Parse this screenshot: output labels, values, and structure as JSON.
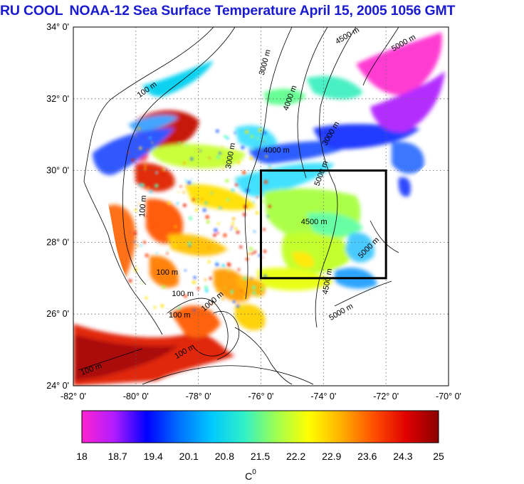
{
  "title": {
    "org": "RU COOL",
    "text": "NOAA-12 Sea Surface Temperature April 15, 2005 1056 GMT"
  },
  "axes": {
    "lat_labels": [
      "34° 0'",
      "32° 0'",
      "30° 0'",
      "28° 0'",
      "26° 0'",
      "24° 0'"
    ],
    "lon_labels": [
      "-82° 0'",
      "-80° 0'",
      "-78° 0'",
      "-76° 0'",
      "-74° 0'",
      "-72° 0'",
      "-70° 0'"
    ],
    "lat_range": [
      24,
      34
    ],
    "lon_range": [
      -82,
      -70
    ],
    "grid": true
  },
  "study_box": {
    "lon": [
      -76,
      -72
    ],
    "lat": [
      27,
      30
    ]
  },
  "depth_contour_labels": [
    {
      "text": "100 m",
      "lon": -79.6,
      "lat": 32.2,
      "rot": -35
    },
    {
      "text": "3000 m",
      "lon": -75.8,
      "lat": 33.0,
      "rot": -75
    },
    {
      "text": "4500 m",
      "lon": -73.2,
      "lat": 33.7,
      "rot": -30
    },
    {
      "text": "5000 m",
      "lon": -71.4,
      "lat": 33.5,
      "rot": -30
    },
    {
      "text": "4000 m",
      "lon": -75.0,
      "lat": 32.0,
      "rot": -70
    },
    {
      "text": "3000 m",
      "lon": -73.7,
      "lat": 31.0,
      "rot": -60
    },
    {
      "text": "3000 m",
      "lon": -76.9,
      "lat": 30.4,
      "rot": -80
    },
    {
      "text": "4000 m",
      "lon": -75.5,
      "lat": 30.5,
      "rot": 0
    },
    {
      "text": "5000 m",
      "lon": -74.0,
      "lat": 29.9,
      "rot": -70
    },
    {
      "text": "4500 m",
      "lon": -74.3,
      "lat": 28.5,
      "rot": 0
    },
    {
      "text": "5000 m",
      "lon": -72.5,
      "lat": 27.8,
      "rot": -45
    },
    {
      "text": "4500 m",
      "lon": -73.8,
      "lat": 26.9,
      "rot": -80
    },
    {
      "text": "5000 m",
      "lon": -73.4,
      "lat": 26.0,
      "rot": -30
    },
    {
      "text": "100 m",
      "lon": -79.7,
      "lat": 29.0,
      "rot": -85
    },
    {
      "text": "100 m",
      "lon": -79.0,
      "lat": 27.1,
      "rot": 0
    },
    {
      "text": "100 m",
      "lon": -78.5,
      "lat": 26.5,
      "rot": 0
    },
    {
      "text": "100 m",
      "lon": -78.6,
      "lat": 25.9,
      "rot": 0
    },
    {
      "text": "100 m",
      "lon": -78.4,
      "lat": 24.9,
      "rot": -30
    },
    {
      "text": "100 m",
      "lon": -81.4,
      "lat": 24.4,
      "rot": -20
    },
    {
      "text": "1000 m",
      "lon": -77.5,
      "lat": 26.3,
      "rot": -40
    }
  ],
  "colorbar": {
    "ticks": [
      "18",
      "18.7",
      "19.4",
      "20.1",
      "20.8",
      "21.5",
      "22.2",
      "22.9",
      "23.6",
      "24.3",
      "25"
    ],
    "min": 18,
    "max": 25,
    "unit": "C",
    "unit_sup": "0",
    "colors": [
      "#ff22d0",
      "#b01cff",
      "#0000ff",
      "#0070ff",
      "#00c8ff",
      "#30f0c8",
      "#a0ff50",
      "#ffff00",
      "#ffb000",
      "#ff5000",
      "#e00000",
      "#8a0000"
    ]
  },
  "colors": {
    "title": "#1a1ad0",
    "box": "#000000",
    "grid": "#666666"
  }
}
